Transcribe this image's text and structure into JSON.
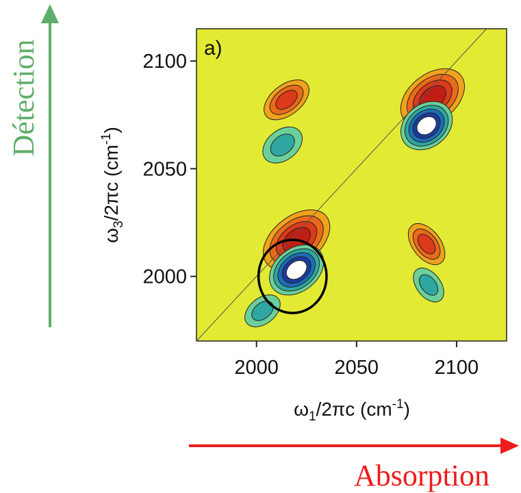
{
  "colors": {
    "plot_background": "#e3ea34",
    "detection_arrow": "#5fae6b",
    "absorption_arrow": "#ee1c1c",
    "positive_peak": "#d9321a",
    "negative_peak": "#1e5fb0",
    "circle": "#000000"
  },
  "annotations": {
    "detection": "Détection",
    "absorption": "Absorption"
  },
  "chart_data": {
    "type": "contour",
    "panel_label": "a)",
    "xlabel_main": "ω",
    "xlabel_sub": "1",
    "xlabel_rest": "/2πc (cm",
    "xlabel_sup": "-1",
    "xlabel_close": ")",
    "ylabel_main": "ω",
    "ylabel_sub": "3",
    "ylabel_rest": "/2πc (cm",
    "ylabel_sup": "-1",
    "ylabel_close": ")",
    "xlim": [
      1970,
      2125
    ],
    "ylim": [
      1970,
      2115
    ],
    "x_ticks": [
      {
        "value": 2000,
        "label": "2000"
      },
      {
        "value": 2050,
        "label": "2050"
      },
      {
        "value": 2100,
        "label": "2100"
      }
    ],
    "y_ticks": [
      {
        "value": 2000,
        "label": "2000"
      },
      {
        "value": 2050,
        "label": "2050"
      },
      {
        "value": 2100,
        "label": "2100"
      }
    ],
    "diagonal": true,
    "peaks": [
      {
        "x": 2015,
        "y": 2082,
        "sign": "positive",
        "levels": 3,
        "rx": 13,
        "ry": 7
      },
      {
        "x": 2013,
        "y": 2061,
        "sign": "negative",
        "levels": 2,
        "rx": 11,
        "ry": 7
      },
      {
        "x": 2088,
        "y": 2083,
        "sign": "positive",
        "levels": 4,
        "rx": 18,
        "ry": 11
      },
      {
        "x": 2085,
        "y": 2070,
        "sign": "negative",
        "levels": 5,
        "rx": 14,
        "ry": 10
      },
      {
        "x": 2020,
        "y": 2017,
        "sign": "positive",
        "levels": 4,
        "rx": 19,
        "ry": 11
      },
      {
        "x": 2020,
        "y": 2003,
        "sign": "negative",
        "levels": 5,
        "rx": 15,
        "ry": 10
      },
      {
        "x": 2003,
        "y": 1984,
        "sign": "negative",
        "levels": 2,
        "rx": 10,
        "ry": 6
      },
      {
        "x": 2085,
        "y": 2015,
        "sign": "positive",
        "levels": 3,
        "rx": 7,
        "ry": 11
      },
      {
        "x": 2086,
        "y": 1996,
        "sign": "negative",
        "levels": 2,
        "rx": 6,
        "ry": 9
      }
    ],
    "highlight_circle": {
      "x": 2018,
      "y": 2000,
      "rx": 17,
      "ry": 17
    }
  }
}
